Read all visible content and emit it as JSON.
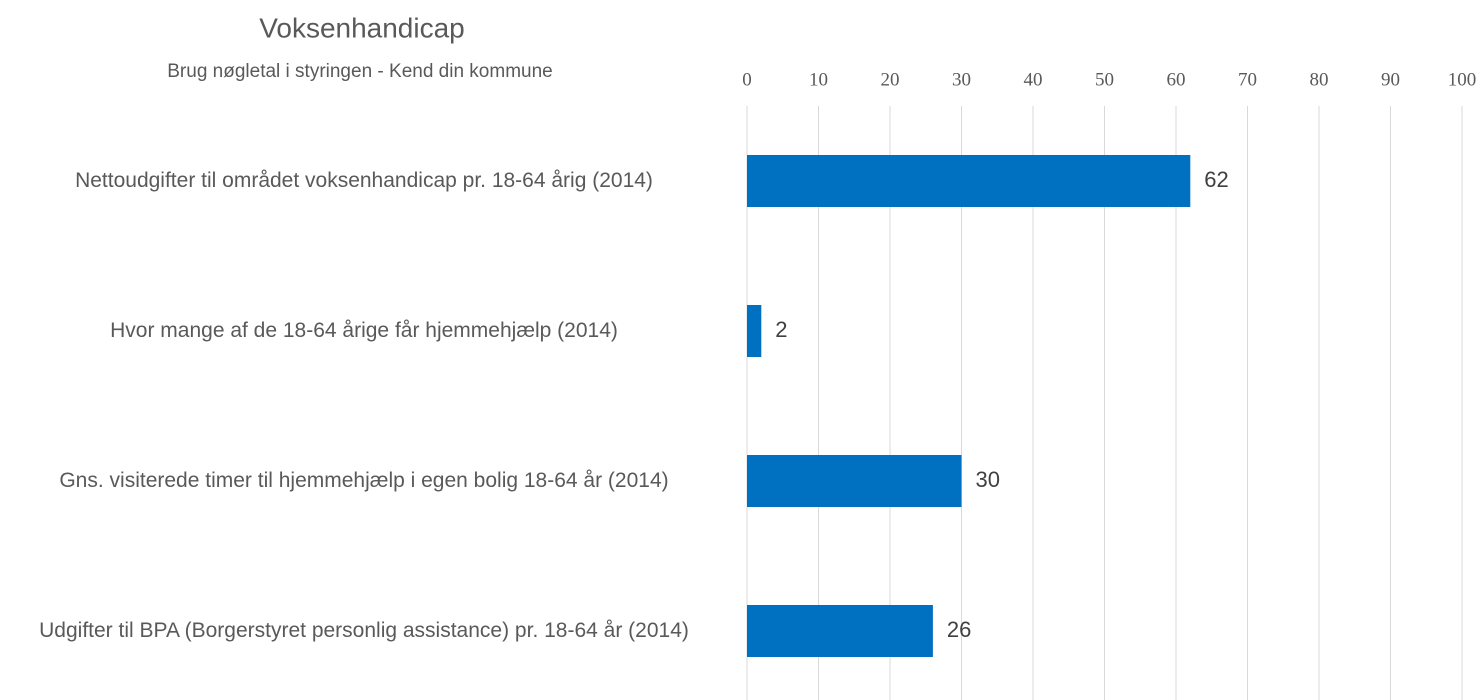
{
  "chart_data": {
    "type": "bar",
    "orientation": "horizontal",
    "title": "Voksenhandicap",
    "subtitle": "Brug nøgletal i styringen - Kend din kommune",
    "categories": [
      "Nettoudgifter til området voksenhandicap pr. 18-64 årig (2014)",
      "Hvor mange af de 18-64 årige får hjemmehjælp (2014)",
      "Gns. visiterede timer til hjemmehjælp i egen bolig  18-64 år (2014)",
      "Udgifter til BPA (Borgerstyret personlig assistance) pr. 18-64 år (2014)"
    ],
    "values": [
      62,
      2,
      30,
      26
    ],
    "color": "#0070c0",
    "xlim": [
      0,
      100
    ],
    "xticks": [
      0,
      10,
      20,
      30,
      40,
      50,
      60,
      70,
      80,
      90,
      100
    ],
    "grid": true
  }
}
